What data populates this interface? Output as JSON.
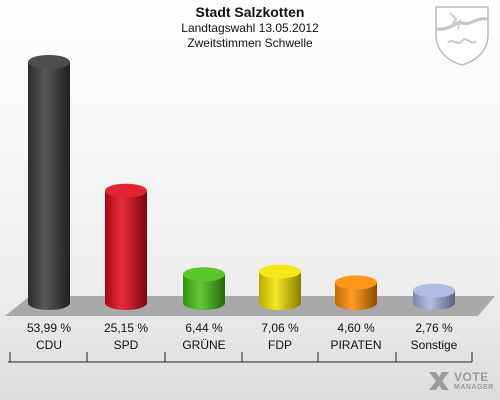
{
  "header": {
    "title": "Stadt Salzkotten",
    "subtitle": "Landtagswahl 13.05.2012",
    "subtitle2": "Zweitstimmen Schwelle"
  },
  "logo": {
    "word1": "VOTE",
    "word2": "MANAGER"
  },
  "colors": {
    "CDU": "#3a3a3a",
    "SPD": "#e0091b",
    "GRUENE": "#46c013",
    "FDP": "#f5e400",
    "PIRATEN": "#ff8a00",
    "Sonstige": "#a5b3e0"
  },
  "chart_data": {
    "type": "bar",
    "categories": [
      "CDU",
      "SPD",
      "GRÜNE",
      "FDP",
      "PIRATEN",
      "Sonstige"
    ],
    "values": [
      53.99,
      25.15,
      6.44,
      7.06,
      4.6,
      2.76
    ],
    "labels": [
      "53,99 %",
      "25,15 %",
      "6,44 %",
      "7,06 %",
      "4,60 %",
      "2,76 %"
    ],
    "colors": [
      "#3a3a3a",
      "#e0091b",
      "#46c013",
      "#f5e400",
      "#ff8a00",
      "#a5b3e0"
    ],
    "unit": "%",
    "title": "Stadt Salzkotten",
    "subtitle": "Landtagswahl 13.05.2012",
    "xlabel": "",
    "ylabel": ""
  }
}
